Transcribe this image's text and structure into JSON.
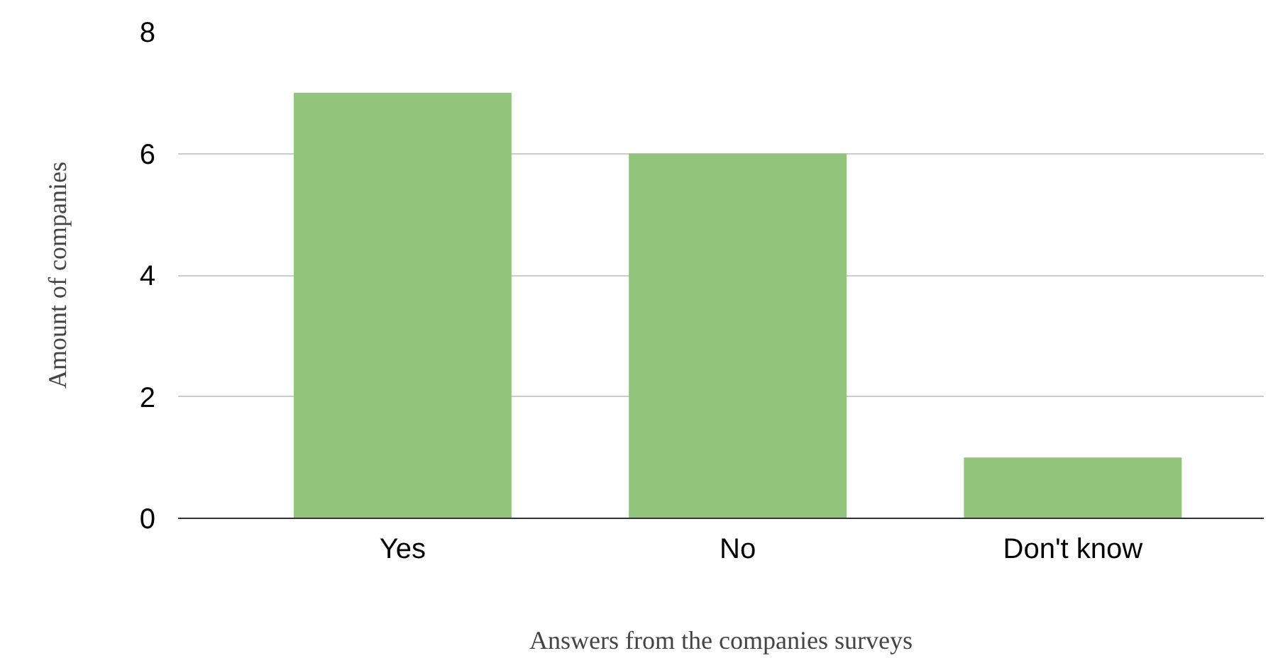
{
  "chart_data": {
    "type": "bar",
    "xlabel": "Answers from the companies surveys",
    "ylabel": "Amount of companies",
    "categories": [
      "Yes",
      "No",
      "Don't know"
    ],
    "values": [
      7,
      6,
      1
    ],
    "color": "#93c47d",
    "ylim": [
      0,
      8
    ],
    "yticks": [
      0,
      2,
      4,
      6,
      8
    ],
    "grid": "y"
  }
}
